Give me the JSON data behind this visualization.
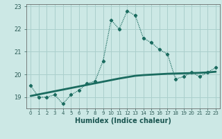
{
  "xlabel": "Humidex (Indice chaleur)",
  "background_color": "#cce8e5",
  "grid_color": "#aacfcc",
  "line_color": "#1a6b5f",
  "x_data": [
    0,
    1,
    2,
    3,
    4,
    5,
    6,
    7,
    8,
    9,
    10,
    11,
    12,
    13,
    14,
    15,
    16,
    17,
    18,
    19,
    20,
    21,
    22,
    23
  ],
  "y_main": [
    19.5,
    19.0,
    19.0,
    19.1,
    18.7,
    19.1,
    19.3,
    19.6,
    19.7,
    20.6,
    22.4,
    22.0,
    22.8,
    22.6,
    21.6,
    21.4,
    21.1,
    20.9,
    19.8,
    19.9,
    20.1,
    19.9,
    20.1,
    20.3
  ],
  "y_trend": [
    19.05,
    19.12,
    19.19,
    19.26,
    19.33,
    19.4,
    19.47,
    19.54,
    19.61,
    19.68,
    19.75,
    19.82,
    19.88,
    19.94,
    19.97,
    19.99,
    20.01,
    20.03,
    20.04,
    20.05,
    20.06,
    20.07,
    20.09,
    20.12
  ],
  "ylim": [
    18.5,
    23.1
  ],
  "yticks": [
    19,
    20,
    21,
    22,
    23
  ],
  "xlim": [
    -0.5,
    23.5
  ],
  "tick_fontsize": 6,
  "xlabel_fontsize": 7
}
